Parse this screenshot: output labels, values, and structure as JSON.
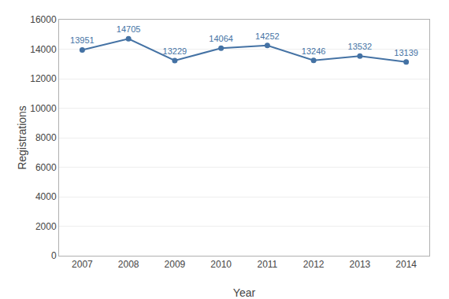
{
  "chart_data": {
    "type": "line",
    "x": [
      2007,
      2008,
      2009,
      2010,
      2011,
      2012,
      2013,
      2014
    ],
    "values": [
      13951,
      14705,
      13229,
      14064,
      14252,
      13246,
      13532,
      13139
    ],
    "xlabel": "Year",
    "ylabel": "Registrations",
    "xlim": [
      2006.5,
      2014.5
    ],
    "xticks": [
      2007,
      2008,
      2009,
      2010,
      2011,
      2012,
      2013,
      2014
    ],
    "ylim": [
      0,
      16000
    ],
    "yticks": [
      0,
      2000,
      4000,
      6000,
      8000,
      10000,
      12000,
      14000,
      16000
    ],
    "color": "#4472a4",
    "marker": "circle",
    "data_labels": true,
    "grid": true
  }
}
